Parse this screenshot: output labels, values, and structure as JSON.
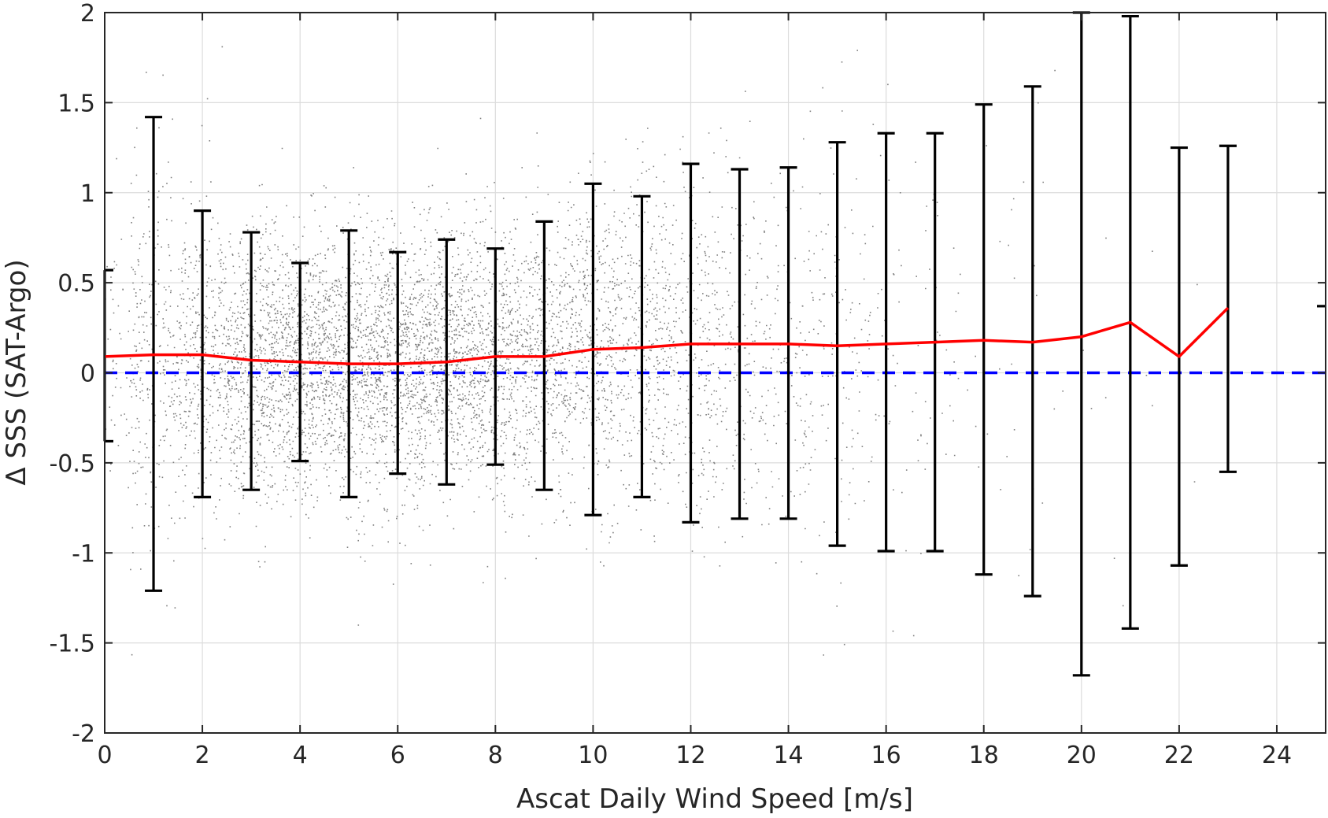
{
  "chart_data": {
    "type": "scatter",
    "title": "",
    "xlabel": "Ascat Daily Wind Speed [m/s]",
    "ylabel": "Δ SSS (SAT-Argo)",
    "xlim": [
      0,
      25
    ],
    "ylim": [
      -2,
      2
    ],
    "x_ticks": [
      0,
      2,
      4,
      6,
      8,
      10,
      12,
      14,
      16,
      18,
      20,
      22,
      24
    ],
    "y_ticks": [
      -2,
      -1.5,
      -1,
      -0.5,
      0,
      0.5,
      1,
      1.5,
      2
    ],
    "y_tick_labels": [
      "-2",
      "-1.5",
      "-1",
      "-0.5",
      "0",
      "0.5",
      "1",
      "1.5",
      "2"
    ],
    "grid": true,
    "legend": "none",
    "colors": {
      "scatter": "#808080",
      "mean_line": "#ff0000",
      "zero_line": "#0000ff",
      "error_bars": "#000000"
    },
    "series": [
      {
        "type": "line",
        "x": [
          0,
          1,
          2,
          3,
          4,
          5,
          6,
          7,
          8,
          9,
          10,
          11,
          12,
          13,
          14,
          15,
          16,
          17,
          18,
          19,
          20,
          21,
          22,
          23
        ],
        "y": [
          0.09,
          0.1,
          0.1,
          0.07,
          0.06,
          0.05,
          0.05,
          0.06,
          0.09,
          0.09,
          0.13,
          0.14,
          0.16,
          0.16,
          0.16,
          0.15,
          0.16,
          0.17,
          0.18,
          0.17,
          0.2,
          0.28,
          0.09,
          0.36
        ]
      },
      {
        "type": "errorbar",
        "x": [
          0,
          1,
          2,
          3,
          4,
          5,
          6,
          7,
          8,
          9,
          10,
          11,
          12,
          13,
          14,
          15,
          16,
          17,
          18,
          19,
          20,
          21,
          22,
          23,
          25
        ],
        "upper": [
          0.57,
          1.42,
          0.9,
          0.78,
          0.61,
          0.79,
          0.67,
          0.74,
          0.69,
          0.84,
          1.05,
          0.98,
          1.16,
          1.13,
          1.14,
          1.28,
          1.33,
          1.33,
          1.49,
          1.59,
          2.0,
          1.98,
          1.25,
          1.26,
          0.37
        ],
        "lower": [
          -0.38,
          -1.21,
          -0.69,
          -0.65,
          -0.49,
          -0.69,
          -0.56,
          -0.62,
          -0.51,
          -0.65,
          -0.79,
          -0.69,
          -0.83,
          -0.81,
          -0.81,
          -0.96,
          -0.99,
          -0.99,
          -1.12,
          -1.24,
          -1.68,
          -1.42,
          -1.07,
          -0.55,
          0.37
        ]
      },
      {
        "type": "reference-line",
        "y": 0
      },
      {
        "type": "scatter-cloud",
        "bin_means": [
          0.09,
          0.1,
          0.1,
          0.07,
          0.06,
          0.05,
          0.05,
          0.06,
          0.09,
          0.09,
          0.13,
          0.14,
          0.16,
          0.16,
          0.16,
          0.15,
          0.16,
          0.17,
          0.18,
          0.17,
          0.2,
          0.28,
          0.09,
          0.36
        ],
        "bin_spread": [
          0.42,
          0.55,
          0.4,
          0.38,
          0.36,
          0.36,
          0.36,
          0.36,
          0.37,
          0.38,
          0.42,
          0.45,
          0.48,
          0.5,
          0.55,
          0.6,
          0.65,
          0.7,
          0.75,
          0.8,
          0.9,
          0.95,
          0.8,
          0.6
        ],
        "bin_density": [
          0.12,
          0.35,
          0.62,
          0.85,
          0.98,
          1.0,
          0.98,
          0.95,
          0.88,
          0.78,
          0.66,
          0.52,
          0.4,
          0.28,
          0.2,
          0.13,
          0.08,
          0.05,
          0.03,
          0.02,
          0.012,
          0.006,
          0.003,
          0.002
        ]
      }
    ]
  }
}
